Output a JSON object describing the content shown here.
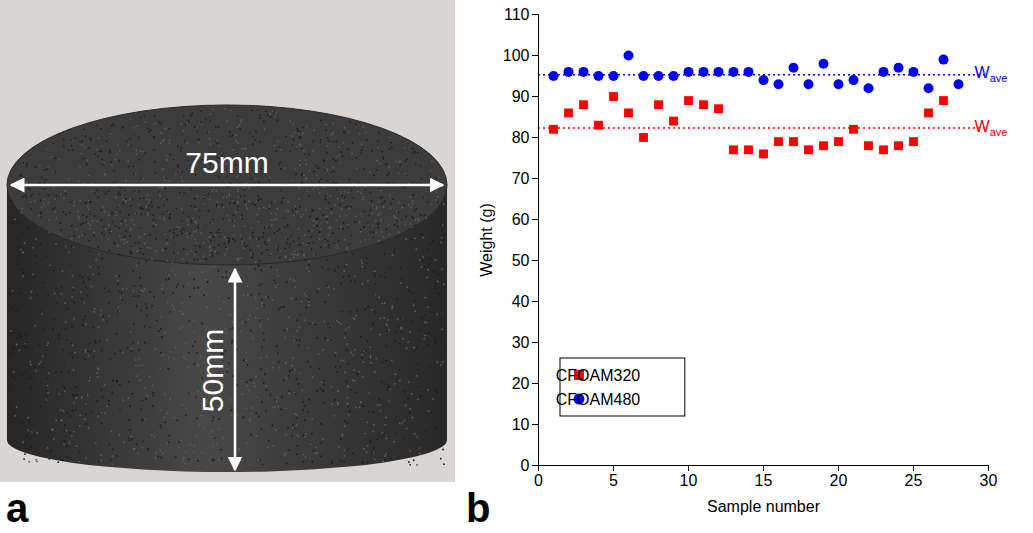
{
  "figure": {
    "panel_labels": [
      "a",
      "b"
    ],
    "photo": {
      "width_label": "75mm",
      "height_label": "50mm"
    }
  },
  "chart_data": {
    "type": "scatter",
    "x_label": "Sample number",
    "y_label": "Weight (g)",
    "xlim": [
      0,
      30
    ],
    "xticks": [
      0,
      5,
      10,
      15,
      20,
      25,
      30
    ],
    "ylim": [
      0,
      110
    ],
    "yticks": [
      0,
      10,
      20,
      30,
      40,
      50,
      60,
      70,
      80,
      90,
      100,
      110
    ],
    "legend": "lower left",
    "series": [
      {
        "name": "CFOAM320",
        "color": "#ff0000",
        "marker": "square",
        "x": [
          1,
          2,
          3,
          4,
          5,
          6,
          7,
          8,
          9,
          10,
          11,
          12,
          13,
          14,
          15,
          16,
          17,
          18,
          19,
          20,
          21,
          22,
          23,
          24,
          25,
          26,
          27
        ],
        "values": [
          82,
          86,
          88,
          83,
          90,
          86,
          80,
          88,
          84,
          89,
          88,
          87,
          77,
          77,
          76,
          79,
          79,
          77,
          78,
          79,
          82,
          78,
          77,
          78,
          79,
          86,
          89
        ],
        "average": 82.3,
        "average_label": {
          "text": "W",
          "sub": "ave"
        }
      },
      {
        "name": "CFOAM480",
        "color": "#0000ff",
        "marker": "circle",
        "x": [
          1,
          2,
          3,
          4,
          5,
          6,
          7,
          8,
          9,
          10,
          11,
          12,
          13,
          14,
          15,
          16,
          17,
          18,
          19,
          20,
          21,
          22,
          23,
          24,
          25,
          26,
          27,
          28
        ],
        "values": [
          95,
          96,
          96,
          95,
          95,
          100,
          95,
          95,
          95,
          96,
          96,
          96,
          96,
          96,
          94,
          93,
          97,
          93,
          98,
          93,
          94,
          92,
          96,
          97,
          96,
          92,
          99,
          93
        ],
        "average": 95.3,
        "average_label": {
          "text": "W",
          "sub": "ave"
        }
      }
    ]
  }
}
